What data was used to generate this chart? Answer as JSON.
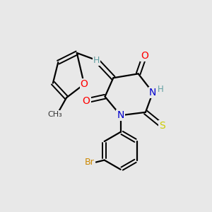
{
  "bg_color": "#e8e8e8",
  "atom_colors": {
    "O": "#ff0000",
    "N": "#0000cd",
    "S": "#cccc00",
    "Br": "#cc8800",
    "H": "#5f9ea0",
    "C": "#000000"
  }
}
